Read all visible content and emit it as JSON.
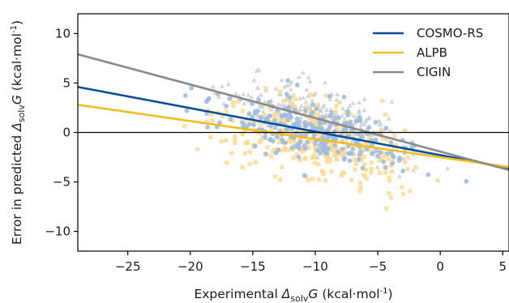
{
  "chart_data": {
    "type": "scatter",
    "title": "",
    "xlabel": {
      "prefix": "Experimental ",
      "symbol": "Δ",
      "sub": "solv",
      "var": "G",
      "unit_open": " (kcal·mol",
      "unit_sup": "-1",
      "unit_close": ")"
    },
    "ylabel": {
      "prefix": "Error in predicted ",
      "symbol": "Δ",
      "sub": "solv",
      "var": "G",
      "unit_open": " (kcal·mol",
      "unit_sup": "-1",
      "unit_close": ")"
    },
    "xlim": [
      -29,
      5.5
    ],
    "ylim": [
      -12,
      12
    ],
    "xticks": [
      -25,
      -20,
      -15,
      -10,
      -5,
      0,
      5
    ],
    "yticks": [
      -10,
      -5,
      0,
      5,
      10
    ],
    "xtick_labels": [
      "−25",
      "−20",
      "−15",
      "−10",
      "−5",
      "0",
      "5"
    ],
    "ytick_labels": [
      "−10",
      "−5",
      "0",
      "5",
      "10"
    ],
    "zero_line": 0,
    "grid": false,
    "legend_position": "top-right",
    "series": [
      {
        "name": "COSMO-RS",
        "color": "#0b4f9a",
        "marker": "circle",
        "marker_color": "#9fbde0",
        "fit": {
          "x": [
            -29,
            5.5
          ],
          "y": [
            4.6,
            -3.6
          ]
        }
      },
      {
        "name": "ALPB",
        "color": "#f3bd1e",
        "marker": "square",
        "marker_color": "#fbdb91",
        "fit": {
          "x": [
            -29,
            5.5
          ],
          "y": [
            2.8,
            -3.5
          ]
        }
      },
      {
        "name": "CIGIN",
        "color": "#8a8a8a",
        "marker": "triangle",
        "marker_color": "#cfcfcf",
        "fit": {
          "x": [
            -29,
            5.5
          ],
          "y": [
            7.9,
            -3.8
          ]
        }
      }
    ]
  }
}
